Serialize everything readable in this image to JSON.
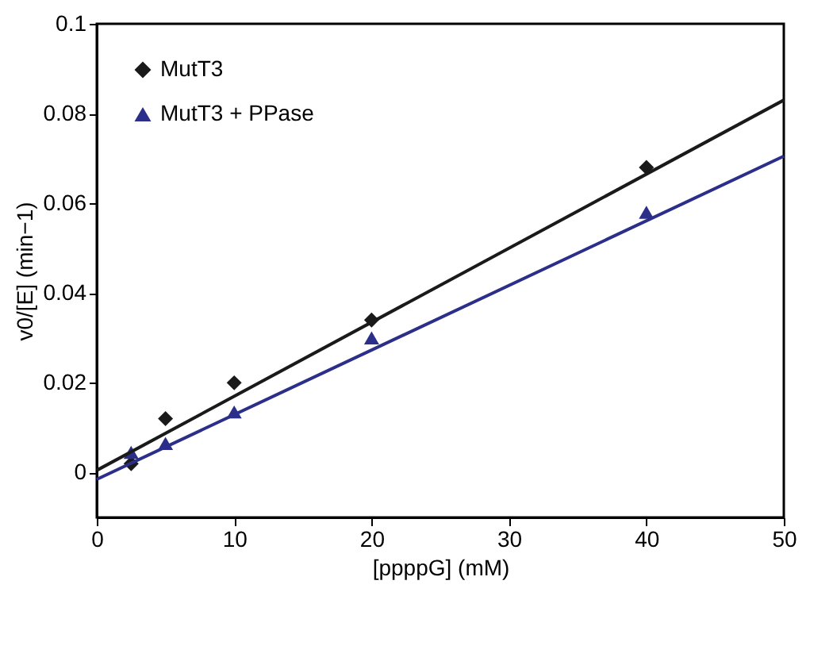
{
  "chart_data": {
    "type": "scatter",
    "xlabel": "[ppppG] (mM)",
    "ylabel": "v0/[E] (min−1)",
    "xlim": [
      0,
      50
    ],
    "xticks": [
      0,
      10,
      20,
      30,
      40,
      50
    ],
    "ylim": [
      -0.01,
      0.1
    ],
    "yticks": [
      0,
      0.02,
      0.04,
      0.06,
      0.08,
      0.1
    ],
    "grid": false,
    "legend": "top left",
    "series": [
      {
        "name": "MutT3",
        "type": "scatter",
        "marker": "diamond",
        "color": "#1a1a1a",
        "x": [
          2.5,
          5,
          10,
          20,
          40
        ],
        "values": [
          0.002,
          0.012,
          0.02,
          0.034,
          0.068
        ]
      },
      {
        "name": "MutT3 + PPase",
        "type": "scatter",
        "marker": "triangle",
        "color": "#2b2f8a",
        "x": [
          2.5,
          5,
          10,
          20,
          40
        ],
        "values": [
          0.0045,
          0.0065,
          0.0135,
          0.03,
          0.058
        ]
      },
      {
        "type": "line",
        "line_style": "solid",
        "color": "#1a1a1a",
        "x": [
          0,
          50
        ],
        "values": [
          0.0005,
          0.083
        ]
      },
      {
        "type": "line",
        "line_style": "solid",
        "color": "#2b2f8a",
        "x": [
          0,
          50
        ],
        "values": [
          -0.0015,
          0.0705
        ]
      }
    ]
  }
}
